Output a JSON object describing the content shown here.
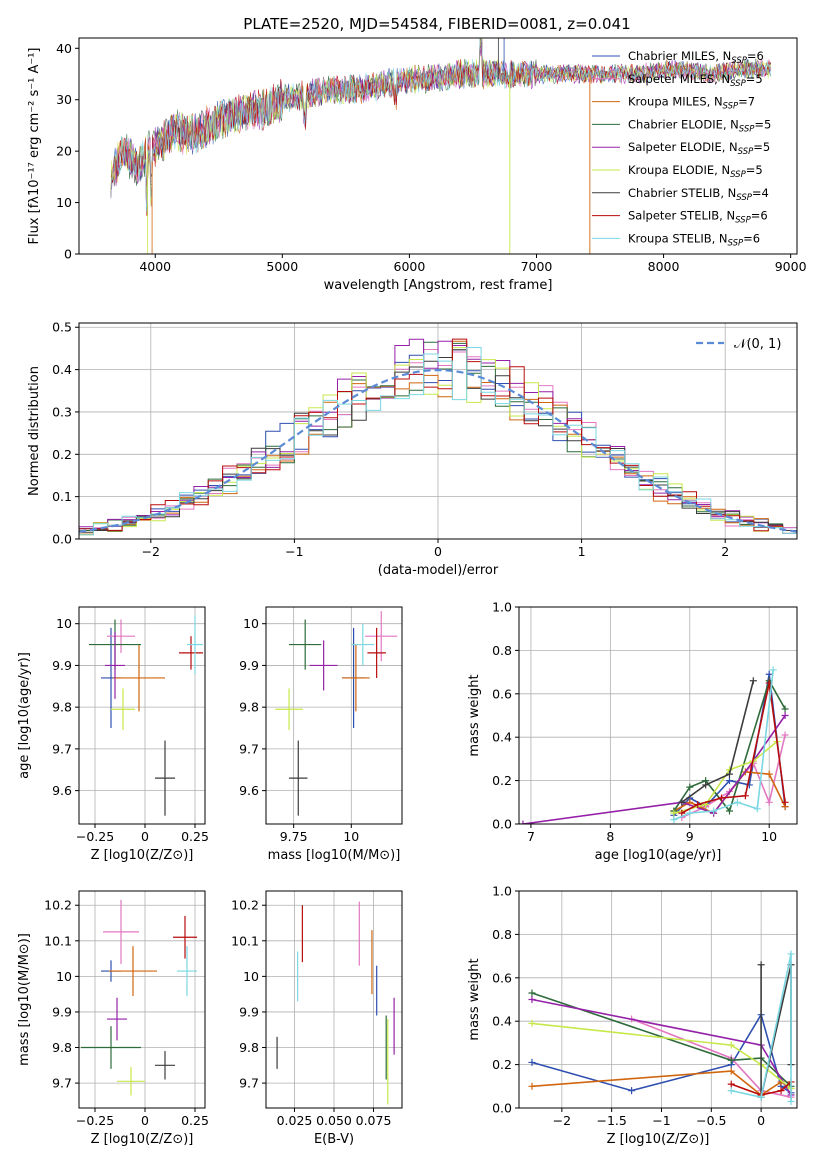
{
  "figure_title": "PLATE=2520, MJD=54584, FIBERID=0081, z=0.041",
  "series": [
    {
      "name": "Chabrier MILES",
      "nssp": "6",
      "color": "#2f4fb0"
    },
    {
      "name": "Salpeter MILES",
      "nssp": "5",
      "color": "#e377c2"
    },
    {
      "name": "Kroupa MILES",
      "nssp": "7",
      "color": "#d0660e"
    },
    {
      "name": "Chabrier ELODIE",
      "nssp": "5",
      "color": "#2e6b3a"
    },
    {
      "name": "Salpeter ELODIE",
      "nssp": "5",
      "color": "#9521a8"
    },
    {
      "name": "Kroupa ELODIE",
      "nssp": "5",
      "color": "#c7e84a"
    },
    {
      "name": "Chabrier STELIB",
      "nssp": "4",
      "color": "#3c3c3c"
    },
    {
      "name": "Salpeter STELIB",
      "nssp": "6",
      "color": "#b80c0c"
    },
    {
      "name": "Kroupa STELIB",
      "nssp": "6",
      "color": "#7ad7e2"
    }
  ],
  "chart_data": [
    {
      "id": "spectrum",
      "type": "line",
      "xlabel": "wavelength [Angstrom, rest frame]",
      "ylabel": "Flux [fλ10⁻¹⁷ erg cm⁻² s⁻¹ A⁻¹]",
      "xlim": [
        3400,
        9050
      ],
      "ylim": [
        0,
        42
      ],
      "xticks": [
        4000,
        5000,
        6000,
        7000,
        8000,
        9000
      ],
      "yticks": [
        0,
        10,
        20,
        30,
        40
      ],
      "grid": false,
      "legend": "right",
      "envelope": {
        "x": [
          3650,
          3750,
          3850,
          3950,
          4050,
          4150,
          4300,
          4500,
          4700,
          4862,
          5000,
          5200,
          5400,
          5600,
          5800,
          6000,
          6200,
          6400,
          6563,
          6800,
          7000,
          7200,
          7500,
          7800,
          8100,
          8400,
          8600,
          8850
        ],
        "y": [
          15,
          20,
          17,
          20,
          22,
          24,
          23,
          26,
          28,
          28,
          30,
          31,
          32,
          32,
          33,
          34,
          34,
          35,
          35,
          35,
          35,
          35,
          35,
          35,
          36,
          35,
          36,
          36
        ]
      }
    },
    {
      "id": "residuals",
      "type": "histogram",
      "xlabel": "(data-model)/error",
      "ylabel": "Normed distribution",
      "xlim": [
        -2.5,
        2.5
      ],
      "ylim": [
        0,
        0.51
      ],
      "xticks": [
        -2,
        -1,
        0,
        1,
        2
      ],
      "yticks": [
        0.0,
        0.1,
        0.2,
        0.3,
        0.4,
        0.5
      ],
      "grid": true,
      "legend": "top-right",
      "reference_label": "𝒩(0, 1)",
      "bin_width": 0.1
    },
    {
      "id": "age_vs_Z",
      "type": "errorbar",
      "xlabel": "Z [log10(Z/Z⊙)]",
      "ylabel": "age  [log10(age/yr)]",
      "xlim": [
        -0.33,
        0.3
      ],
      "ylim": [
        9.52,
        10.04
      ],
      "xticks": [
        -0.25,
        0.0,
        0.25
      ],
      "yticks": [
        9.6,
        9.7,
        9.8,
        9.9,
        10.0
      ],
      "grid": true,
      "points": [
        {
          "x": -0.17,
          "y": 9.87,
          "xerr": 0.05,
          "yerr": 0.12
        },
        {
          "x": -0.12,
          "y": 9.97,
          "xerr": 0.07,
          "yerr": 0.04
        },
        {
          "x": -0.03,
          "y": 9.87,
          "xerr": 0.13,
          "yerr": 0.08
        },
        {
          "x": -0.15,
          "y": 9.95,
          "xerr": 0.13,
          "yerr": 0.06
        },
        {
          "x": -0.15,
          "y": 9.9,
          "xerr": 0.05,
          "yerr": 0.08
        },
        {
          "x": -0.11,
          "y": 9.795,
          "xerr": 0.06,
          "yerr": 0.05
        },
        {
          "x": 0.1,
          "y": 9.63,
          "xerr": 0.05,
          "yerr": 0.09
        },
        {
          "x": 0.23,
          "y": 9.93,
          "xerr": 0.06,
          "yerr": 0.04
        },
        {
          "x": 0.25,
          "y": 9.95,
          "xerr": 0.04,
          "yerr": 0.07
        }
      ]
    },
    {
      "id": "age_vs_mass",
      "type": "errorbar",
      "xlabel": "mass [log10(M/M⊙)]",
      "ylabel": "",
      "xlim": [
        9.63,
        10.22
      ],
      "ylim": [
        9.52,
        10.04
      ],
      "xticks": [
        9.75,
        10.0
      ],
      "yticks": [
        9.6,
        9.7,
        9.8,
        9.9,
        10.0
      ],
      "grid": true,
      "points": [
        {
          "x": 10.01,
          "y": 9.87,
          "xerr": 0.05,
          "yerr": 0.12
        },
        {
          "x": 10.13,
          "y": 9.97,
          "xerr": 0.07,
          "yerr": 0.06
        },
        {
          "x": 10.02,
          "y": 9.87,
          "xerr": 0.06,
          "yerr": 0.08
        },
        {
          "x": 9.8,
          "y": 9.95,
          "xerr": 0.07,
          "yerr": 0.06
        },
        {
          "x": 9.88,
          "y": 9.9,
          "xerr": 0.06,
          "yerr": 0.06
        },
        {
          "x": 9.73,
          "y": 9.795,
          "xerr": 0.06,
          "yerr": 0.05
        },
        {
          "x": 9.77,
          "y": 9.63,
          "xerr": 0.04,
          "yerr": 0.09
        },
        {
          "x": 10.11,
          "y": 9.93,
          "xerr": 0.04,
          "yerr": 0.06
        },
        {
          "x": 10.05,
          "y": 9.95,
          "xerr": 0.05,
          "yerr": 0.05
        }
      ]
    },
    {
      "id": "mass_weight_vs_age",
      "type": "line",
      "xlabel": "age  [log10(age/yr)]",
      "ylabel": "mass weight",
      "xlim": [
        6.85,
        10.35
      ],
      "ylim": [
        0,
        1.0
      ],
      "xticks": [
        7,
        8,
        9,
        10
      ],
      "yticks": [
        0.0,
        0.2,
        0.4,
        0.6,
        0.8,
        1.0
      ],
      "grid": true,
      "series_points": [
        {
          "x": [
            8.8,
            9.0,
            9.2,
            9.5,
            9.75,
            10.0,
            10.2
          ],
          "y": [
            0.04,
            0.12,
            0.08,
            0.2,
            0.18,
            0.69,
            0.08
          ]
        },
        {
          "x": [
            8.9,
            9.2,
            9.5,
            9.8,
            10.0,
            10.2
          ],
          "y": [
            0.03,
            0.08,
            0.15,
            0.28,
            0.1,
            0.41
          ]
        },
        {
          "x": [
            8.8,
            9.0,
            9.3,
            9.7,
            10.0,
            10.2
          ],
          "y": [
            0.06,
            0.1,
            0.05,
            0.24,
            0.23,
            0.08
          ]
        },
        {
          "x": [
            8.8,
            9.0,
            9.2,
            9.5,
            10.0,
            10.2
          ],
          "y": [
            0.06,
            0.17,
            0.2,
            0.06,
            0.66,
            0.53
          ]
        },
        {
          "x": [
            6.9,
            8.9,
            9.3,
            9.8,
            10.2
          ],
          "y": [
            0.0,
            0.1,
            0.05,
            0.29,
            0.5
          ]
        },
        {
          "x": [
            8.8,
            9.2,
            9.5,
            9.8,
            10.1
          ],
          "y": [
            0.05,
            0.09,
            0.25,
            0.29,
            0.38
          ]
        },
        {
          "x": [
            8.9,
            9.2,
            9.5,
            9.8
          ],
          "y": [
            0.1,
            0.18,
            0.23,
            0.66
          ]
        },
        {
          "x": [
            8.9,
            9.1,
            9.4,
            9.7,
            10.0,
            10.2
          ],
          "y": [
            0.05,
            0.09,
            0.12,
            0.13,
            0.65,
            0.1
          ]
        },
        {
          "x": [
            8.8,
            9.0,
            9.3,
            9.6,
            9.85,
            10.05
          ],
          "y": [
            0.02,
            0.05,
            0.06,
            0.1,
            0.07,
            0.71
          ]
        }
      ]
    },
    {
      "id": "mass_vs_Z",
      "type": "errorbar",
      "xlabel": "Z [log10(Z/Z⊙)]",
      "ylabel": "mass [log10(M/M⊙)]",
      "xlim": [
        -0.33,
        0.3
      ],
      "ylim": [
        9.63,
        10.24
      ],
      "xticks": [
        -0.25,
        0.0,
        0.25
      ],
      "yticks": [
        9.7,
        9.8,
        9.9,
        10.0,
        10.1,
        10.2
      ],
      "grid": true,
      "points": [
        {
          "x": -0.17,
          "y": 10.015,
          "xerr": 0.05,
          "yerr": 0.03
        },
        {
          "x": -0.12,
          "y": 10.125,
          "xerr": 0.09,
          "yerr": 0.09
        },
        {
          "x": -0.06,
          "y": 10.015,
          "xerr": 0.12,
          "yerr": 0.07
        },
        {
          "x": -0.17,
          "y": 9.8,
          "xerr": 0.15,
          "yerr": 0.06
        },
        {
          "x": -0.14,
          "y": 9.88,
          "xerr": 0.05,
          "yerr": 0.06
        },
        {
          "x": -0.07,
          "y": 9.705,
          "xerr": 0.07,
          "yerr": 0.04
        },
        {
          "x": 0.1,
          "y": 9.75,
          "xerr": 0.05,
          "yerr": 0.04
        },
        {
          "x": 0.2,
          "y": 10.11,
          "xerr": 0.06,
          "yerr": 0.06
        },
        {
          "x": 0.21,
          "y": 10.015,
          "xerr": 0.05,
          "yerr": 0.07
        }
      ]
    },
    {
      "id": "mass_vs_EBV",
      "type": "errorbar",
      "xlabel": "E(B-V)",
      "ylabel": "",
      "xlim": [
        0.007,
        0.093
      ],
      "ylim": [
        9.63,
        10.24
      ],
      "xticks": [
        0.025,
        0.05,
        0.075
      ],
      "xticklabels": [
        "0.025",
        "0.050",
        "0.075"
      ],
      "yticks": [
        9.7,
        9.8,
        9.9,
        10.0,
        10.1,
        10.2
      ],
      "grid": true,
      "points": [
        {
          "x": 0.077,
          "y": 9.96,
          "xerr": 0,
          "yerr": 0.07
        },
        {
          "x": 0.066,
          "y": 10.12,
          "xerr": 0,
          "yerr": 0.09
        },
        {
          "x": 0.074,
          "y": 10.04,
          "xerr": 0,
          "yerr": 0.09
        },
        {
          "x": 0.083,
          "y": 9.8,
          "xerr": 0,
          "yerr": 0.09
        },
        {
          "x": 0.088,
          "y": 9.86,
          "xerr": 0,
          "yerr": 0.08
        },
        {
          "x": 0.084,
          "y": 9.76,
          "xerr": 0,
          "yerr": 0.12
        },
        {
          "x": 0.014,
          "y": 9.785,
          "xerr": 0,
          "yerr": 0.045
        },
        {
          "x": 0.03,
          "y": 10.12,
          "xerr": 0,
          "yerr": 0.08
        },
        {
          "x": 0.027,
          "y": 10.0,
          "xerr": 0,
          "yerr": 0.07
        }
      ]
    },
    {
      "id": "mass_weight_vs_Z",
      "type": "line",
      "xlabel": "Z [log10(Z/Z⊙)]",
      "ylabel": "mass weight",
      "xlim": [
        -2.43,
        0.36
      ],
      "ylim": [
        0,
        1.0
      ],
      "xticks": [
        -2.0,
        -1.5,
        -1.0,
        -0.5,
        0.0
      ],
      "yticks": [
        0.0,
        0.2,
        0.4,
        0.6,
        0.8,
        1.0
      ],
      "grid": true,
      "series_points": [
        {
          "x": [
            -2.3,
            -1.3,
            -0.3,
            0.0,
            0.2,
            0.3
          ],
          "y": [
            0.21,
            0.08,
            0.2,
            0.43,
            0.1,
            0.07
          ]
        },
        {
          "x": [
            -1.3,
            -0.3,
            0.0,
            0.3
          ],
          "y": [
            0.41,
            0.23,
            0.08,
            0.05
          ]
        },
        {
          "x": [
            -2.3,
            -0.3,
            0.0,
            0.2,
            0.3
          ],
          "y": [
            0.1,
            0.17,
            0.06,
            0.12,
            0.09
          ]
        },
        {
          "x": [
            -2.3,
            -0.3,
            0.0,
            0.3
          ],
          "y": [
            0.53,
            0.22,
            0.23,
            0.1
          ]
        },
        {
          "x": [
            -2.3,
            0.0,
            0.3
          ],
          "y": [
            0.5,
            0.29,
            0.06
          ]
        },
        {
          "x": [
            -2.3,
            -0.3,
            0.0,
            0.3
          ],
          "y": [
            0.39,
            0.29,
            0.2,
            0.09
          ]
        },
        {
          "x": [
            0.0,
            0.0,
            0.3,
            0.3
          ],
          "y": [
            0.66,
            0.05,
            0.66,
            0.2
          ]
        },
        {
          "x": [
            -0.3,
            0.0,
            0.2,
            0.3
          ],
          "y": [
            0.11,
            0.06,
            0.08,
            0.12
          ]
        },
        {
          "x": [
            -0.3,
            0.0,
            0.3,
            0.3
          ],
          "y": [
            0.08,
            0.05,
            0.71,
            0.03
          ]
        }
      ]
    }
  ]
}
